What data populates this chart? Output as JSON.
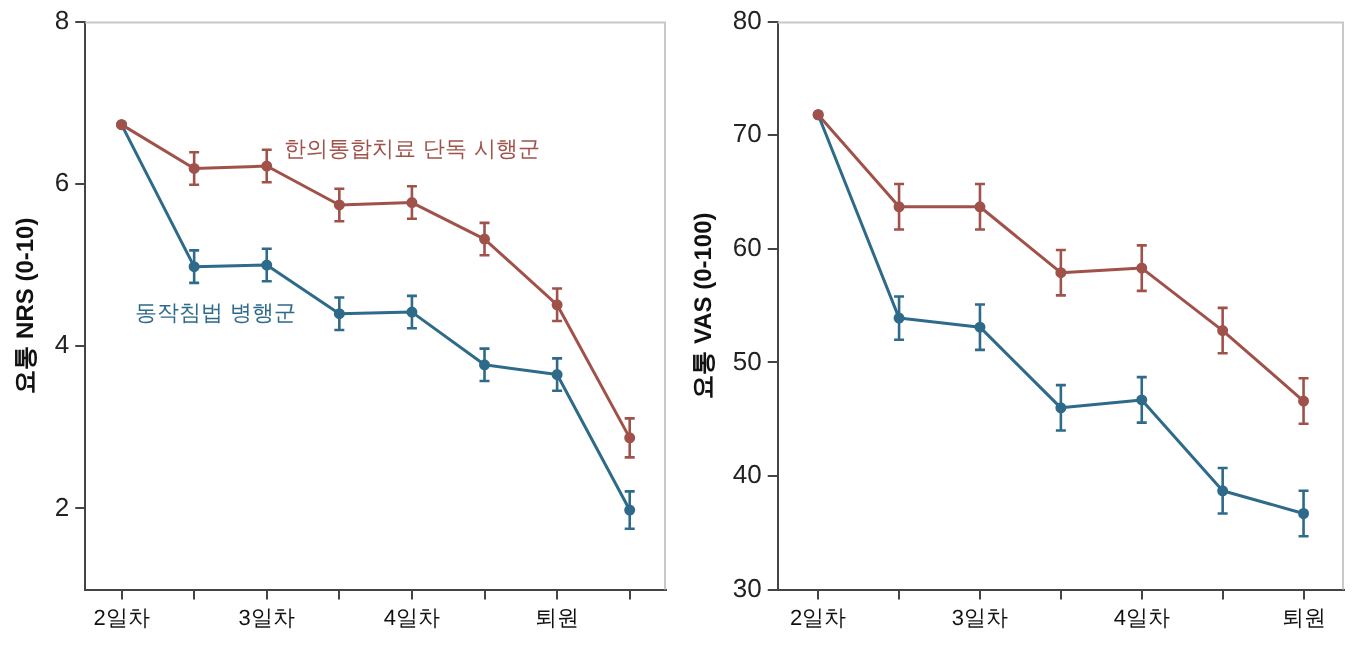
{
  "chart_data": [
    {
      "type": "line",
      "ylabel": "요통 NRS (0-10)",
      "categories": [
        "2일차",
        null,
        "3일차",
        null,
        "4일차",
        null,
        "퇴원",
        null
      ],
      "ylim": [
        1,
        8
      ],
      "yticks": [
        2,
        4,
        6,
        8
      ],
      "grid": false,
      "legend": false,
      "marker": "circle",
      "series": [
        {
          "name": "한의통합치료 단독 시행군",
          "color": "#a0524a",
          "values": [
            6.73,
            6.19,
            6.22,
            5.74,
            5.77,
            5.32,
            4.51,
            2.87
          ],
          "errors": [
            null,
            0.2,
            0.2,
            0.2,
            0.2,
            0.2,
            0.2,
            0.24
          ]
        },
        {
          "name": "동작침법 병행군",
          "color": "#2e6a8a",
          "values": [
            6.73,
            4.98,
            5.0,
            4.4,
            4.42,
            3.77,
            3.65,
            1.98
          ],
          "errors": [
            null,
            0.2,
            0.2,
            0.2,
            0.2,
            0.2,
            0.2,
            0.23
          ]
        }
      ]
    },
    {
      "type": "line",
      "ylabel": "요통 VAS (0-100)",
      "categories": [
        "2일차",
        null,
        "3일차",
        null,
        "4일차",
        null,
        "퇴원"
      ],
      "ylim": [
        30,
        80
      ],
      "yticks": [
        30,
        40,
        50,
        60,
        70,
        80
      ],
      "grid": false,
      "legend": false,
      "marker": "circle",
      "series": [
        {
          "color": "#a0524a",
          "values": [
            71.8,
            63.7,
            63.7,
            57.9,
            58.3,
            52.8,
            46.6
          ],
          "errors": [
            null,
            2,
            2,
            2,
            2,
            2,
            2
          ]
        },
        {
          "color": "#2e6a8a",
          "values": [
            71.8,
            53.9,
            53.1,
            46.0,
            46.7,
            38.7,
            36.7
          ],
          "errors": [
            null,
            1.9,
            2,
            2,
            2,
            2,
            2
          ]
        }
      ]
    }
  ]
}
